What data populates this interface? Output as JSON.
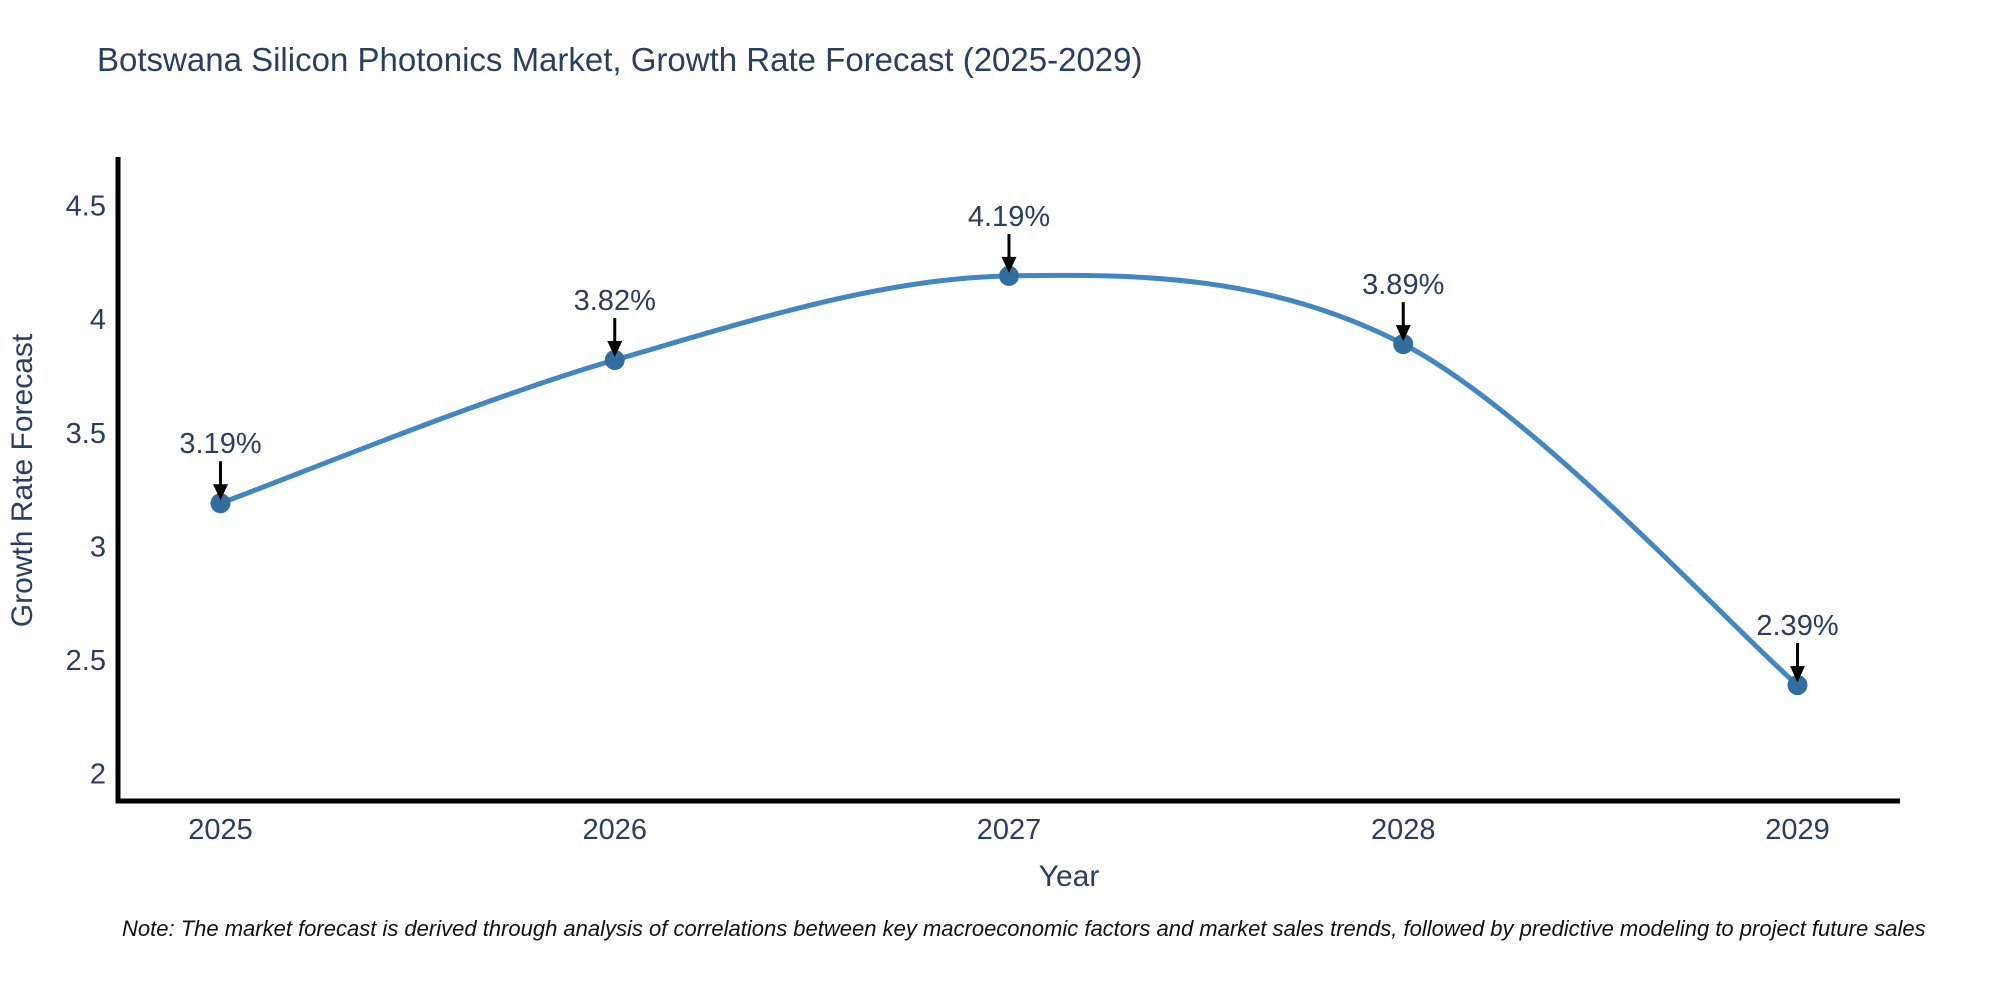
{
  "title": "Botswana Silicon Photonics Market, Growth Rate Forecast (2025-2029)",
  "note": "Note: The market forecast is derived through analysis of correlations between key macroeconomic factors and market sales trends, followed by predictive modeling to project future sales",
  "colors": {
    "title_text": "#2a3f5f",
    "tick_text": "#2a3f5f",
    "axis_title_text": "#2a3f5f",
    "annotation_text": "#2a3f5f",
    "axis_line": "#000000",
    "trend_line": "#4287c1",
    "marker_fill": "#336d9e",
    "arrow": "#000000",
    "note_text": "#111111",
    "background": "#ffffff"
  },
  "chart_data": {
    "type": "line",
    "line_shape": "spline",
    "title": "Botswana Silicon Photonics Market, Growth Rate Forecast (2025-2029)",
    "xlabel": "Year",
    "ylabel": "Growth Rate Forecast",
    "x": [
      2025,
      2026,
      2027,
      2028,
      2029
    ],
    "y": [
      3.19,
      3.82,
      4.19,
      3.89,
      2.39
    ],
    "point_labels": [
      "3.19%",
      "3.82%",
      "4.19%",
      "3.89%",
      "2.39%"
    ],
    "x_tick_labels": [
      "2025",
      "2026",
      "2027",
      "2028",
      "2029"
    ],
    "x_tick_values": [
      2025,
      2026,
      2027,
      2028,
      2029
    ],
    "y_tick_labels": [
      "4.5",
      "4",
      "3.5",
      "3",
      "2.5",
      "2"
    ],
    "y_tick_values": [
      4.5,
      4.0,
      3.5,
      3.0,
      2.5,
      2.0
    ],
    "x_range": [
      2024.74,
      2029.26
    ],
    "y_range": [
      1.88,
      4.7
    ],
    "grid": false,
    "legend": false,
    "markers": true,
    "annotations_with_arrows": true
  }
}
